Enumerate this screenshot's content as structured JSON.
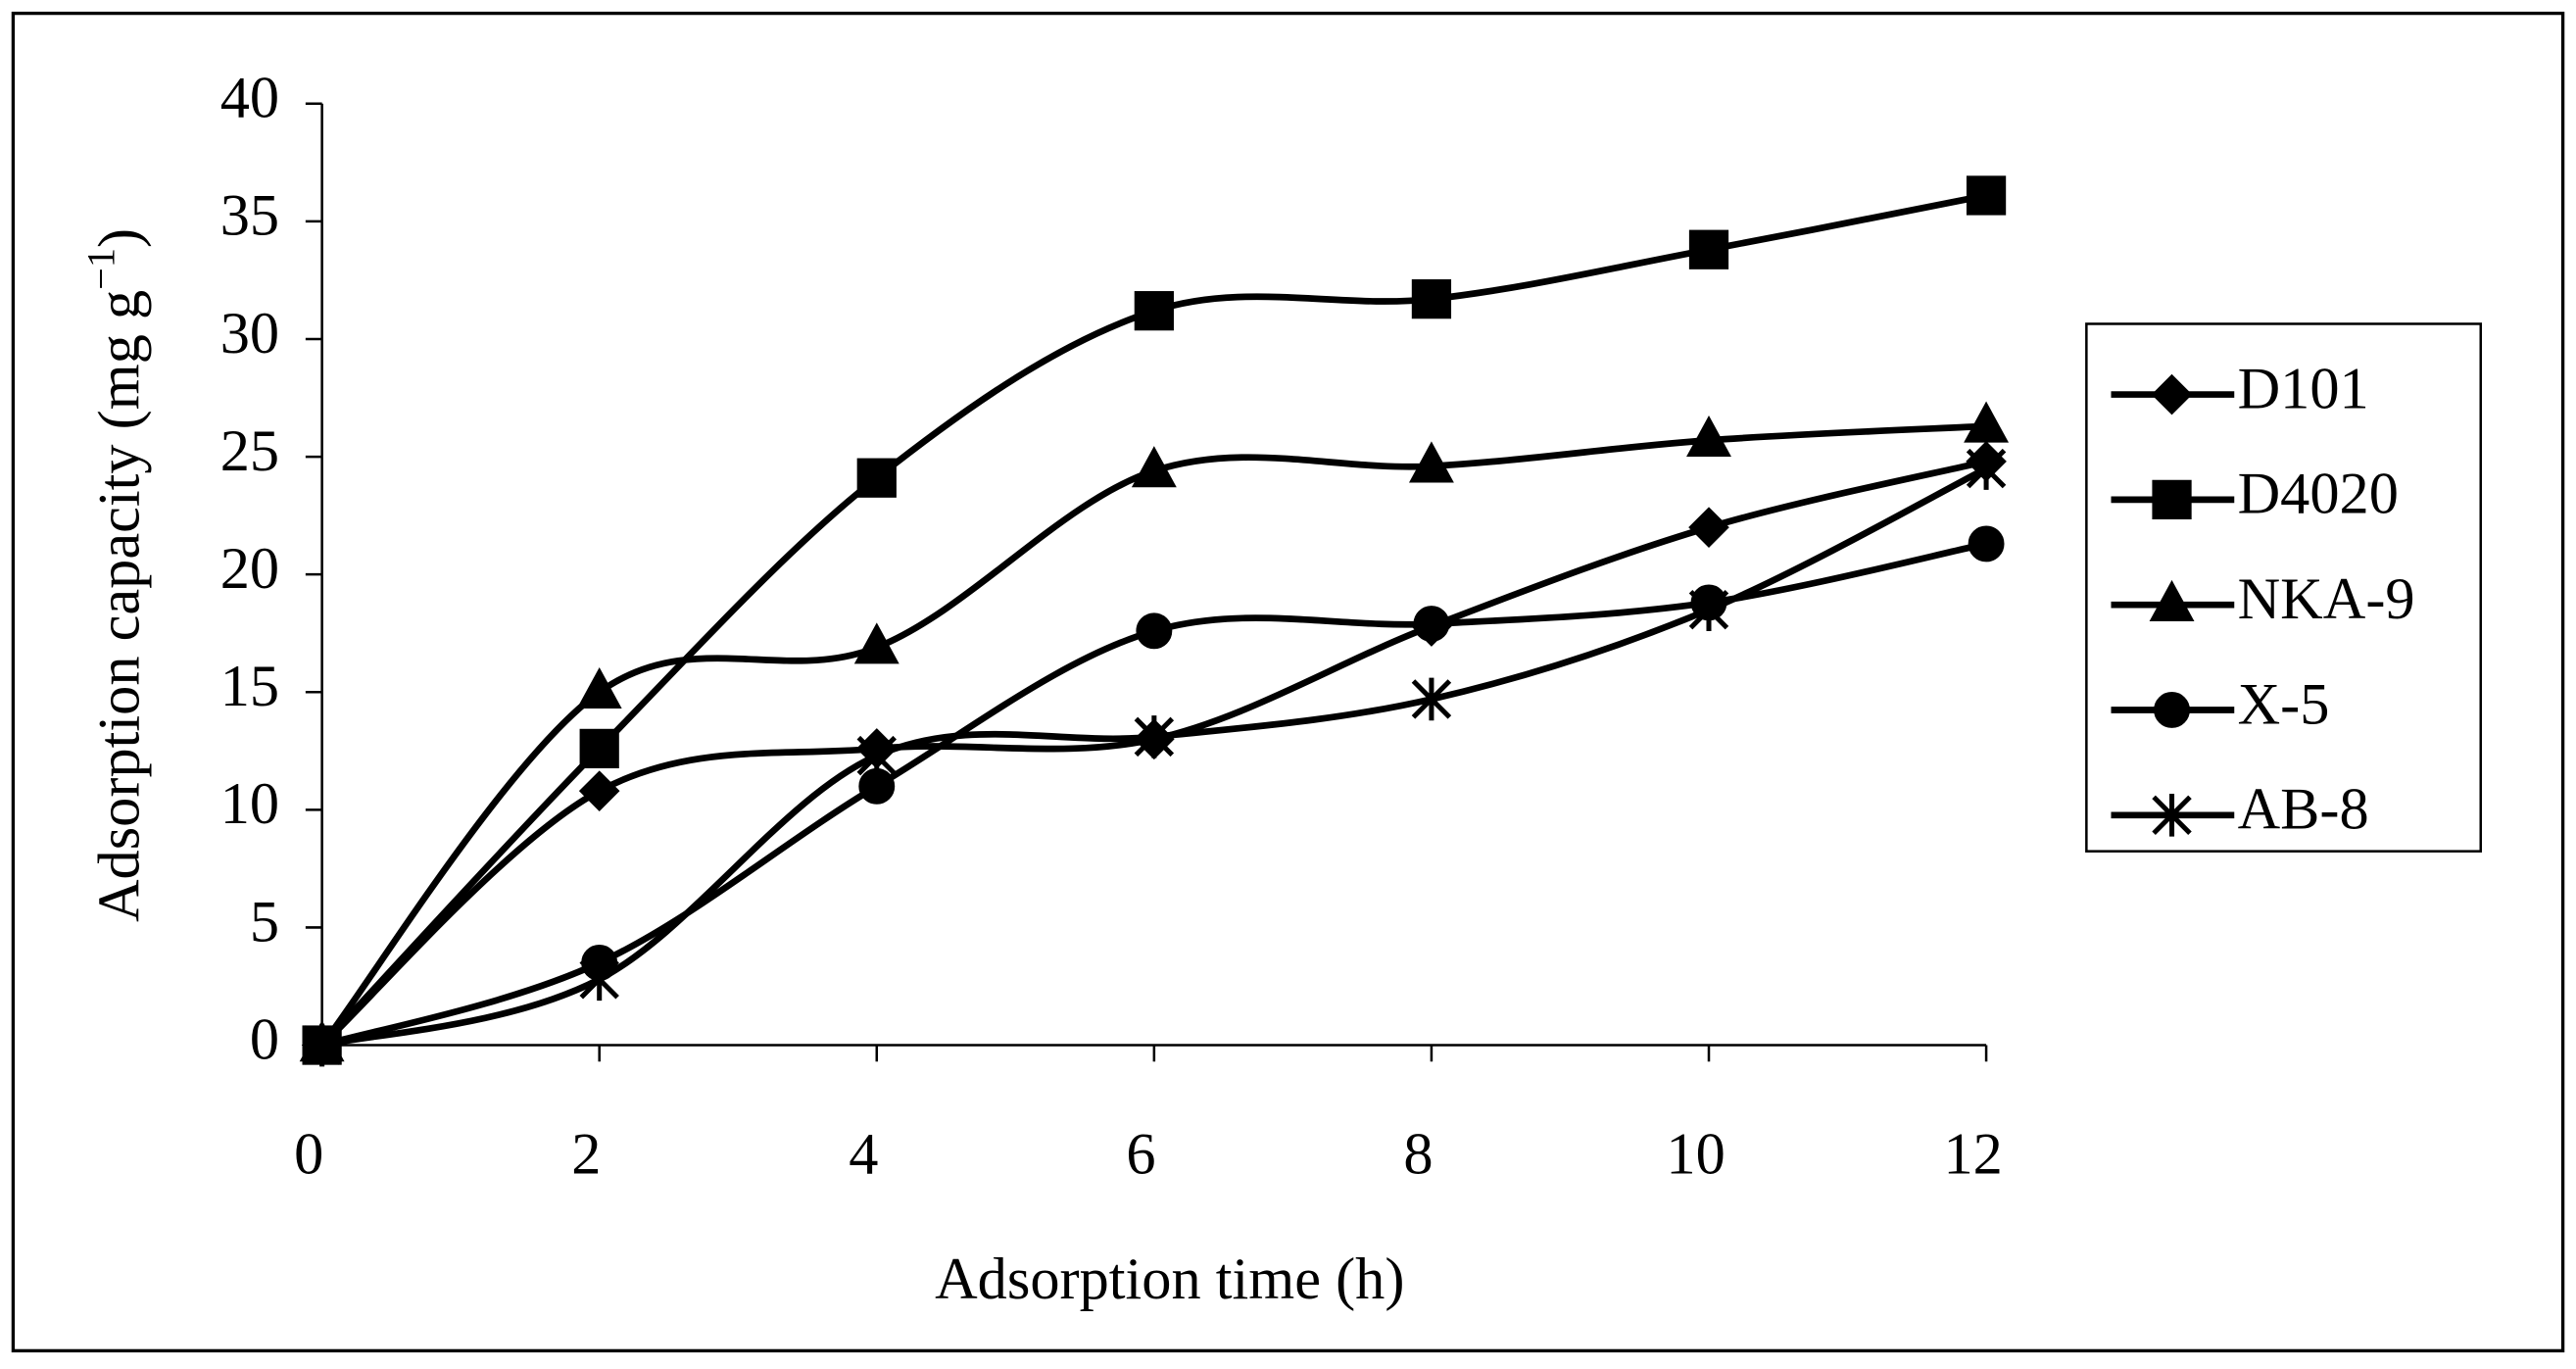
{
  "chart_data": {
    "type": "line",
    "x_label": "Adsorption time (h)",
    "y_label": {
      "text": "Adsorption capacity (mg g",
      "superscript": "−1",
      "suffix": ")"
    },
    "x": [
      0,
      2,
      4,
      6,
      8,
      10,
      12
    ],
    "xlim": [
      0,
      12
    ],
    "xticks": [
      0,
      2,
      4,
      6,
      8,
      10,
      12
    ],
    "ylim": [
      0,
      40
    ],
    "yticks": [
      0,
      5,
      10,
      15,
      20,
      25,
      30,
      35,
      40
    ],
    "smooth": true,
    "legend": "right",
    "series": [
      {
        "name": "D101",
        "color": "#000000",
        "marker": "diamond",
        "values": [
          0,
          10.8,
          12.6,
          13.0,
          17.8,
          22.0,
          24.8
        ]
      },
      {
        "name": "D4020",
        "color": "#000000",
        "marker": "square",
        "values": [
          0,
          12.6,
          24.1,
          31.2,
          31.7,
          33.8,
          36.1
        ]
      },
      {
        "name": "NKA-9",
        "color": "#000000",
        "marker": "triangle",
        "values": [
          0,
          15.0,
          16.9,
          24.4,
          24.6,
          25.7,
          26.3
        ]
      },
      {
        "name": "X-5",
        "color": "#000000",
        "marker": "circle",
        "values": [
          0,
          3.5,
          11.0,
          17.6,
          17.9,
          18.8,
          21.3
        ]
      },
      {
        "name": "AB-8",
        "color": "#000000",
        "marker": "asterisk",
        "values": [
          0,
          2.8,
          12.3,
          13.1,
          14.7,
          18.5,
          24.5
        ]
      }
    ]
  }
}
